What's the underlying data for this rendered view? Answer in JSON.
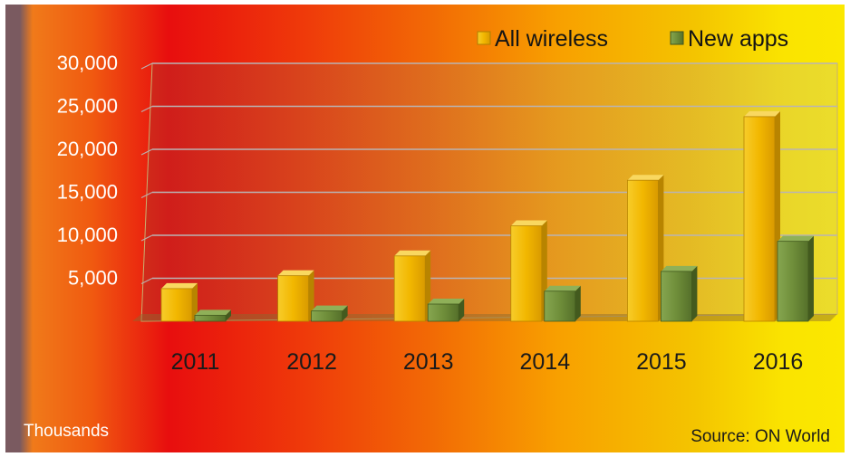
{
  "chart_data": {
    "type": "bar",
    "categories": [
      "2011",
      "2012",
      "2013",
      "2014",
      "2015",
      "2016"
    ],
    "series": [
      {
        "name": "All wireless",
        "values": [
          3800,
          5300,
          7600,
          11100,
          16400,
          23800
        ]
      },
      {
        "name": "New apps",
        "values": [
          700,
          1200,
          2000,
          3500,
          5800,
          9300
        ]
      }
    ],
    "ylim": [
      0,
      30000
    ],
    "yticks": [
      "5,000",
      "10,000",
      "15,000",
      "20,000",
      "25,000",
      "30,000"
    ],
    "ytick_values": [
      5000,
      10000,
      15000,
      20000,
      25000,
      30000
    ],
    "ylabel": "Thousands",
    "source": "Source: ON World",
    "legend_position": "top-right",
    "grid": true,
    "colors": {
      "All wireless": "#f2b700",
      "New apps": "#6f8e3a"
    }
  }
}
